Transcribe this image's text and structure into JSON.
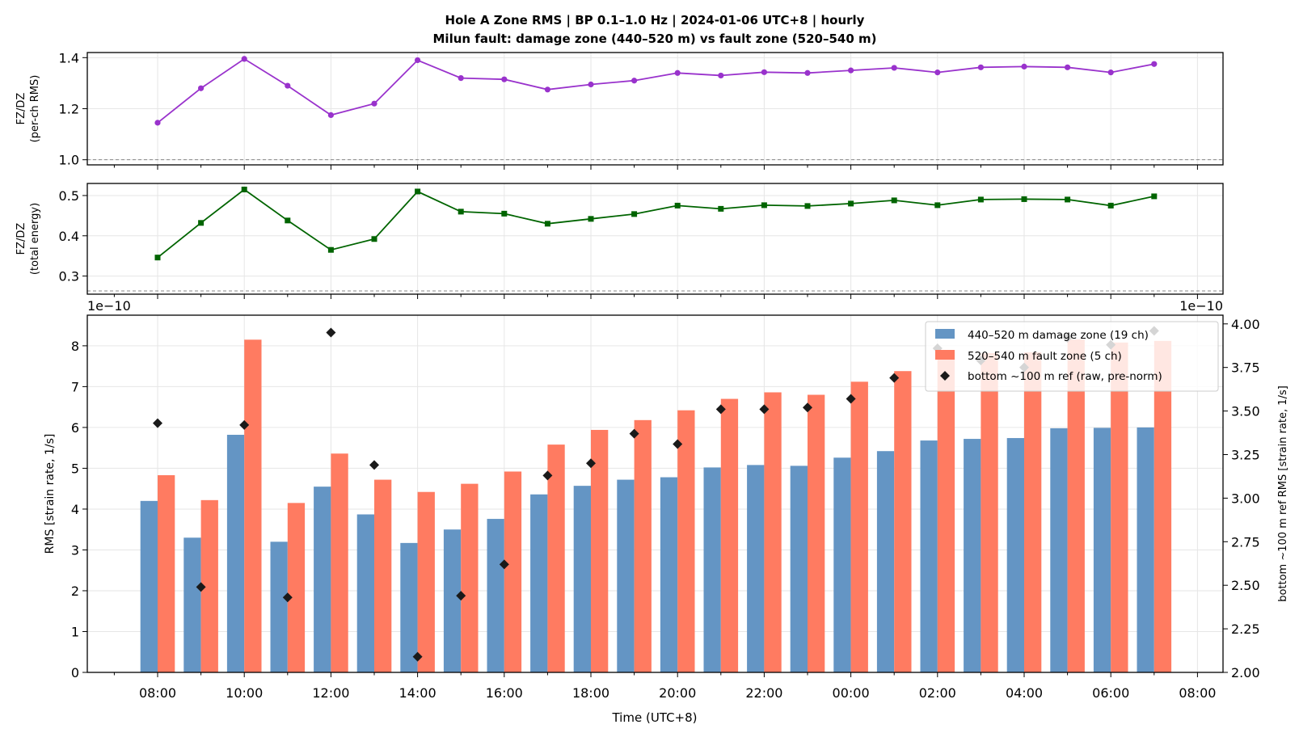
{
  "chart_data": {
    "title_line1": "Hole A Zone RMS  |  BP 0.1–1.0 Hz  |  2024-01-06 UTC+8  |  hourly",
    "title_line2": "Milun fault: damage zone (440–520 m) vs fault zone (520–540 m)",
    "x_hours": [
      "08:00",
      "09:00",
      "10:00",
      "11:00",
      "12:00",
      "13:00",
      "14:00",
      "15:00",
      "16:00",
      "17:00",
      "18:00",
      "19:00",
      "20:00",
      "21:00",
      "22:00",
      "23:00",
      "00:00",
      "01:00",
      "02:00",
      "03:00",
      "04:00",
      "05:00",
      "06:00",
      "07:00"
    ],
    "x_tick_labels": [
      "08:00",
      "10:00",
      "12:00",
      "14:00",
      "16:00",
      "18:00",
      "20:00",
      "22:00",
      "00:00",
      "02:00",
      "04:00",
      "06:00",
      "08:00"
    ],
    "xlabel": "Time (UTC+8)",
    "panels": [
      {
        "type": "line",
        "ylabel_line1": "FZ/DZ",
        "ylabel_line2": "(per-ch RMS)",
        "ylim": [
          0.98,
          1.42
        ],
        "yticks": [
          "1.0",
          "1.2",
          "1.4"
        ],
        "reference_line": 1.0,
        "color": "#9932CC",
        "marker": "circle",
        "values": [
          1.145,
          1.28,
          1.395,
          1.29,
          1.175,
          1.22,
          1.39,
          1.32,
          1.315,
          1.275,
          1.295,
          1.31,
          1.34,
          1.33,
          1.343,
          1.34,
          1.35,
          1.36,
          1.342,
          1.362,
          1.365,
          1.362,
          1.342,
          1.375
        ]
      },
      {
        "type": "line",
        "ylabel_line1": "FZ/DZ",
        "ylabel_line2": "(total energy)",
        "ylim": [
          0.255,
          0.53
        ],
        "yticks": [
          "0.3",
          "0.4",
          "0.5"
        ],
        "reference_line": 0.263,
        "color": "#006400",
        "marker": "square",
        "values": [
          0.346,
          0.432,
          0.515,
          0.438,
          0.365,
          0.392,
          0.51,
          0.46,
          0.455,
          0.43,
          0.442,
          0.454,
          0.475,
          0.467,
          0.476,
          0.474,
          0.48,
          0.488,
          0.476,
          0.49,
          0.491,
          0.49,
          0.475,
          0.498
        ]
      },
      {
        "type": "bar",
        "ylabel": "RMS  [strain rate, 1/s]",
        "ylabel_right": "bottom ~100 m ref RMS  [strain rate, 1/s]",
        "offset_left": "1e−10",
        "offset_right": "1e−10",
        "ylim": [
          0,
          8.75
        ],
        "yticks": [
          "0",
          "1",
          "2",
          "3",
          "4",
          "5",
          "6",
          "7",
          "8"
        ],
        "ylim_right": [
          2.0,
          4.05
        ],
        "yticks_right": [
          "2.00",
          "2.25",
          "2.50",
          "2.75",
          "3.00",
          "3.25",
          "3.50",
          "3.75",
          "4.00"
        ],
        "legend_position": "top-right",
        "series": [
          {
            "name": "440–520 m  damage zone (19 ch)",
            "color": "#6495C4",
            "values": [
              4.2,
              3.3,
              5.82,
              3.2,
              4.55,
              3.87,
              3.17,
              3.5,
              3.76,
              4.36,
              4.57,
              4.72,
              4.78,
              5.02,
              5.08,
              5.06,
              5.26,
              5.42,
              5.68,
              5.72,
              5.74,
              5.98,
              5.99,
              6.0
            ]
          },
          {
            "name": "520–540 m  fault zone (5 ch)",
            "color": "#FF7B61",
            "values": [
              4.83,
              4.22,
              8.15,
              4.15,
              5.36,
              4.72,
              4.42,
              4.62,
              4.92,
              5.58,
              5.94,
              6.18,
              6.42,
              6.7,
              6.86,
              6.8,
              7.12,
              7.38,
              7.82,
              7.82,
              7.84,
              8.16,
              8.08,
              8.12
            ]
          },
          {
            "name": "bottom ~100 m ref (raw, pre-norm)",
            "color": "#1a1a1a",
            "axis": "right",
            "marker": "diamond",
            "values": [
              3.43,
              2.49,
              3.42,
              2.43,
              3.95,
              3.19,
              2.09,
              2.44,
              2.62,
              3.13,
              3.2,
              3.37,
              3.31,
              3.51,
              3.51,
              3.52,
              3.57,
              3.69,
              3.86,
              3.79,
              3.75,
              3.92,
              3.88,
              3.96
            ]
          }
        ]
      }
    ]
  }
}
